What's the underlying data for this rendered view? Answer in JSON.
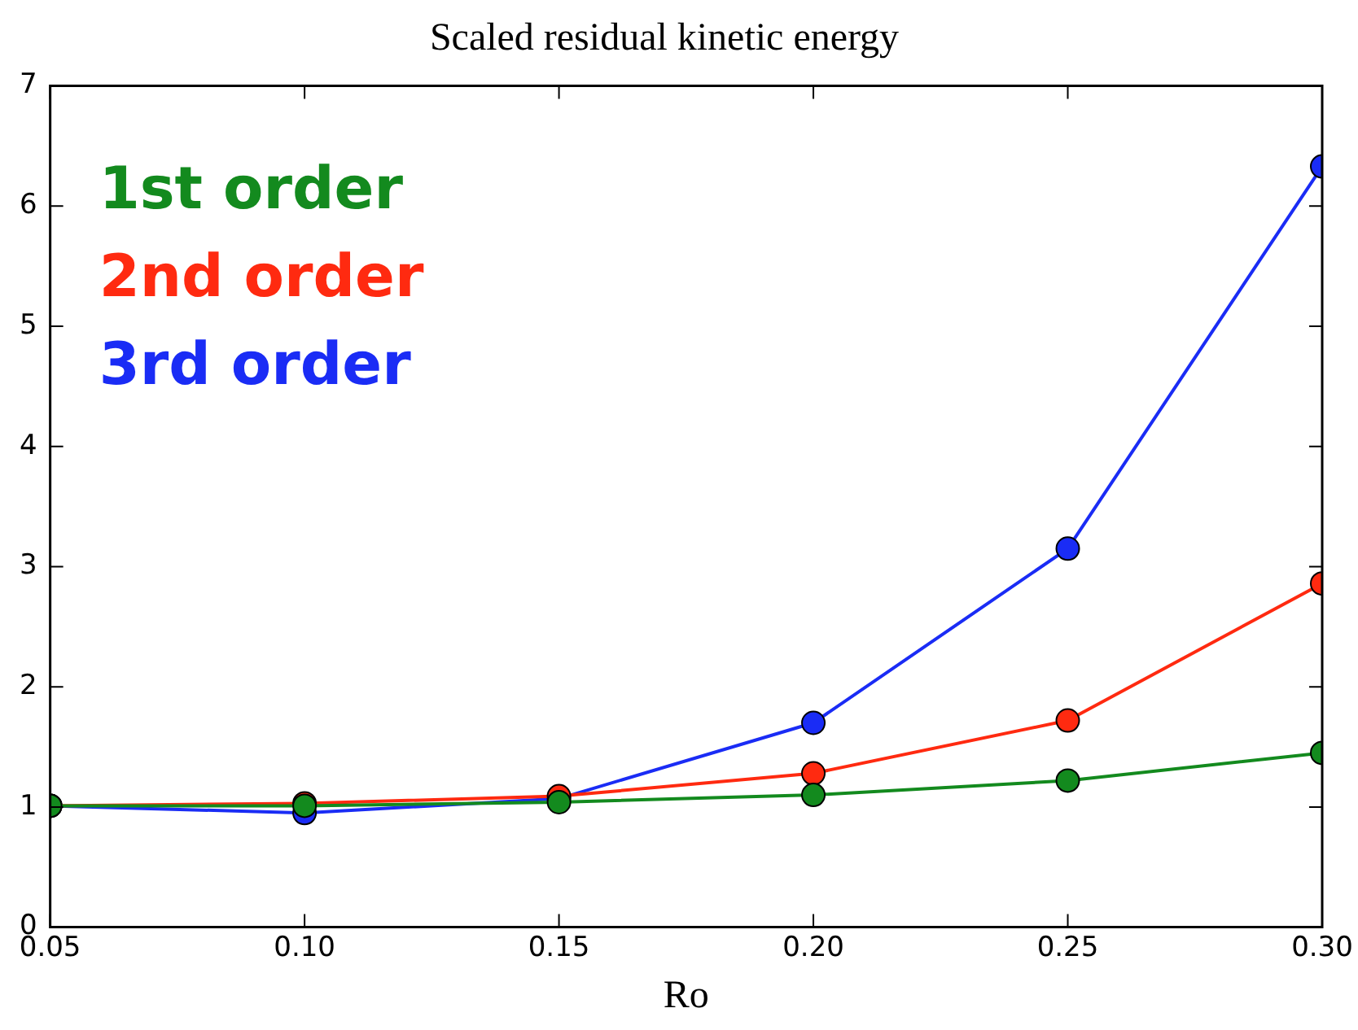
{
  "chart_data": {
    "type": "line",
    "title": "Scaled residual kinetic energy",
    "xlabel": "Ro",
    "x": [
      0.05,
      0.1,
      0.15,
      0.2,
      0.25,
      0.3
    ],
    "series": [
      {
        "name": "1st order",
        "color": "#138a1e",
        "values": [
          1.01,
          1.01,
          1.04,
          1.1,
          1.22,
          1.45
        ]
      },
      {
        "name": "2nd order",
        "color": "#ff2a10",
        "values": [
          1.01,
          1.03,
          1.09,
          1.28,
          1.72,
          2.86
        ]
      },
      {
        "name": "3rd order",
        "color": "#1a2cf5",
        "values": [
          1.01,
          0.95,
          1.07,
          1.7,
          3.15,
          6.33
        ]
      }
    ],
    "xlim": [
      0.05,
      0.3
    ],
    "xticks": [
      {
        "value": 0.05,
        "label": "0.05"
      },
      {
        "value": 0.1,
        "label": "0.10"
      },
      {
        "value": 0.15,
        "label": "0.15"
      },
      {
        "value": 0.2,
        "label": "0.20"
      },
      {
        "value": 0.25,
        "label": "0.25"
      },
      {
        "value": 0.3,
        "label": "0.30"
      }
    ],
    "ylim": [
      0,
      7
    ],
    "yticks": [
      0,
      1,
      2,
      3,
      4,
      5,
      6,
      7
    ],
    "grid": false,
    "legend": "top left",
    "marker": "circle",
    "line_style": "solid"
  }
}
